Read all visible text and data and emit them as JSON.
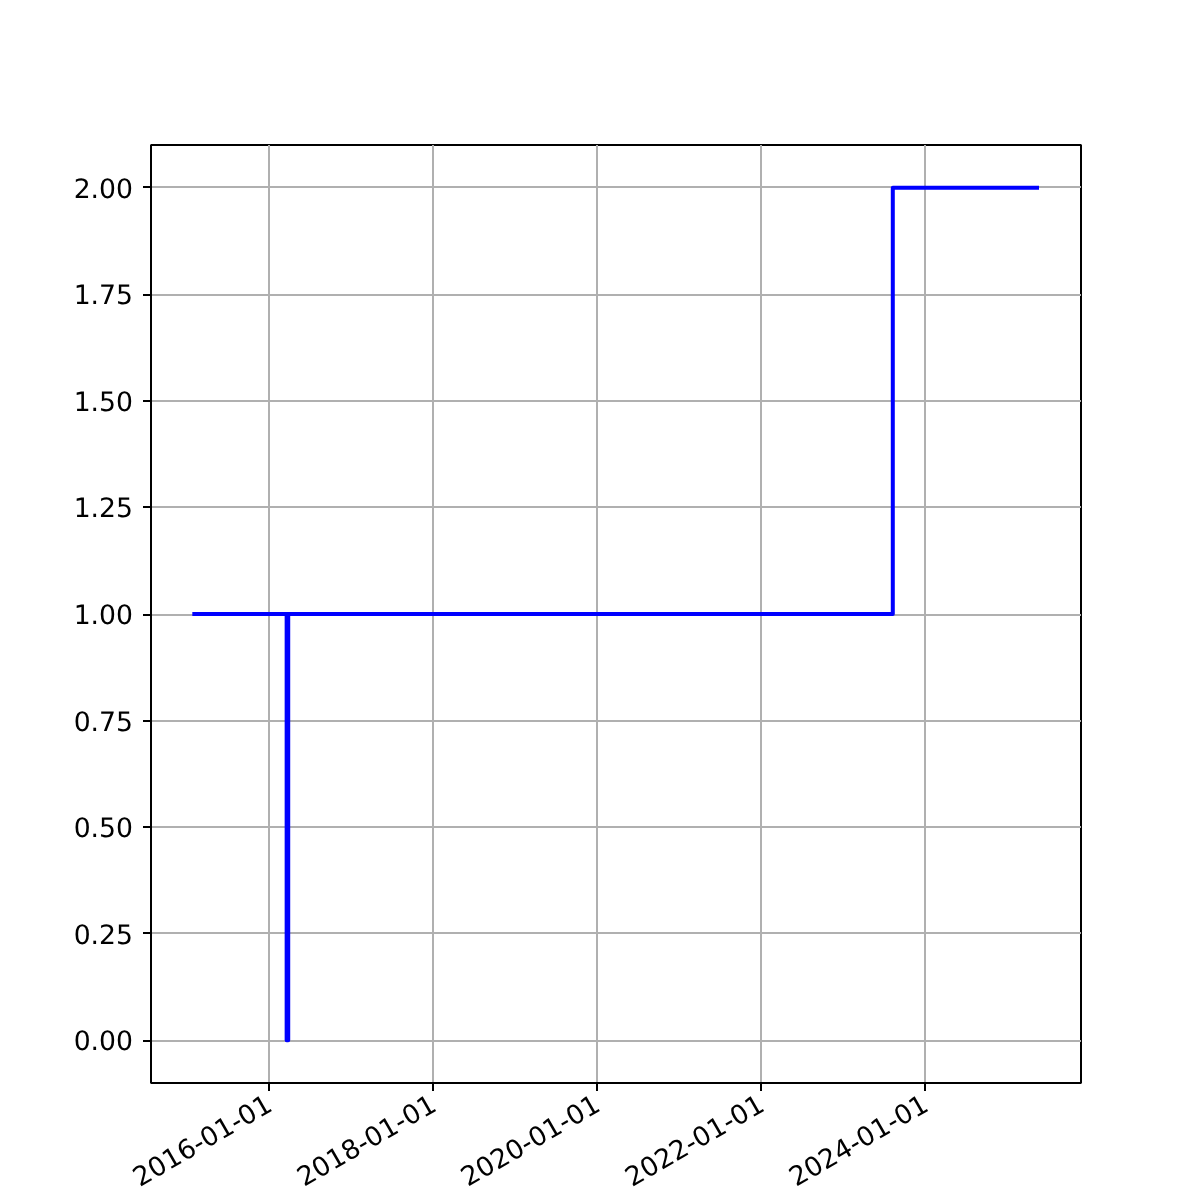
{
  "chart_data": {
    "type": "step",
    "x": [
      "2015-01-25",
      "2016-03-20",
      "2016-03-27",
      "2023-08-10",
      "2025-05-22"
    ],
    "series": [
      {
        "color": "#0000ff",
        "values": [
          1,
          0,
          1,
          2,
          2
        ]
      }
    ],
    "xlim": [
      "2014-07-25",
      "2025-11-25"
    ],
    "xticks": [
      "2016-01-01",
      "2018-01-01",
      "2020-01-01",
      "2022-01-01",
      "2024-01-01"
    ],
    "ylim": [
      -0.1,
      2.1
    ],
    "yticks": [
      {
        "value": 0,
        "label": "0.00"
      },
      {
        "value": 0.25,
        "label": "0.25"
      },
      {
        "value": 0.5,
        "label": "0.50"
      },
      {
        "value": 0.75,
        "label": "0.75"
      },
      {
        "value": 1,
        "label": "1.00"
      },
      {
        "value": 1.25,
        "label": "1.25"
      },
      {
        "value": 1.5,
        "label": "1.50"
      },
      {
        "value": 1.75,
        "label": "1.75"
      },
      {
        "value": 2,
        "label": "2.00"
      }
    ],
    "grid": true,
    "line_style": "solid"
  }
}
